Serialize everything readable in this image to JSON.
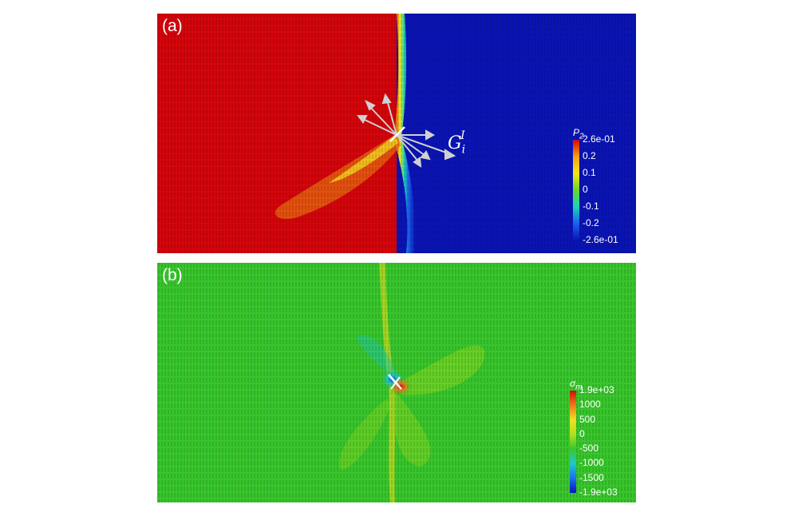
{
  "panel_a": {
    "label": "(a)",
    "colorbar": {
      "title": "P",
      "title_sub": "2",
      "ticks": [
        "2.6e-01",
        "0.2",
        "0.1",
        "0",
        "-0.1",
        "-0.2",
        "-2.6e-01"
      ],
      "colors": [
        "#d4050b",
        "#f0a018",
        "#f5e61c",
        "#6cd42a",
        "#15d6b8",
        "#1a5ff0",
        "#0a14b4"
      ]
    },
    "annotation": {
      "base": "G",
      "sub": "i",
      "sup": "I"
    },
    "colors": {
      "left_phase": "#d4050b",
      "right_phase": "#0a14b4",
      "interface": "#1fd6b0"
    }
  },
  "panel_b": {
    "label": "(b)",
    "colorbar": {
      "title": "σ",
      "title_sub": "m",
      "ticks": [
        "1.9e+03",
        "1000",
        "500",
        "0",
        "-500",
        "-1000",
        "-1500",
        "-1.9e+03"
      ],
      "colors": [
        "#c8100b",
        "#f07818",
        "#f0e020",
        "#b0e020",
        "#38c62c",
        "#20c8c8",
        "#1a70f0",
        "#0a14c0"
      ]
    },
    "colors": {
      "background": "#38c62c"
    }
  }
}
